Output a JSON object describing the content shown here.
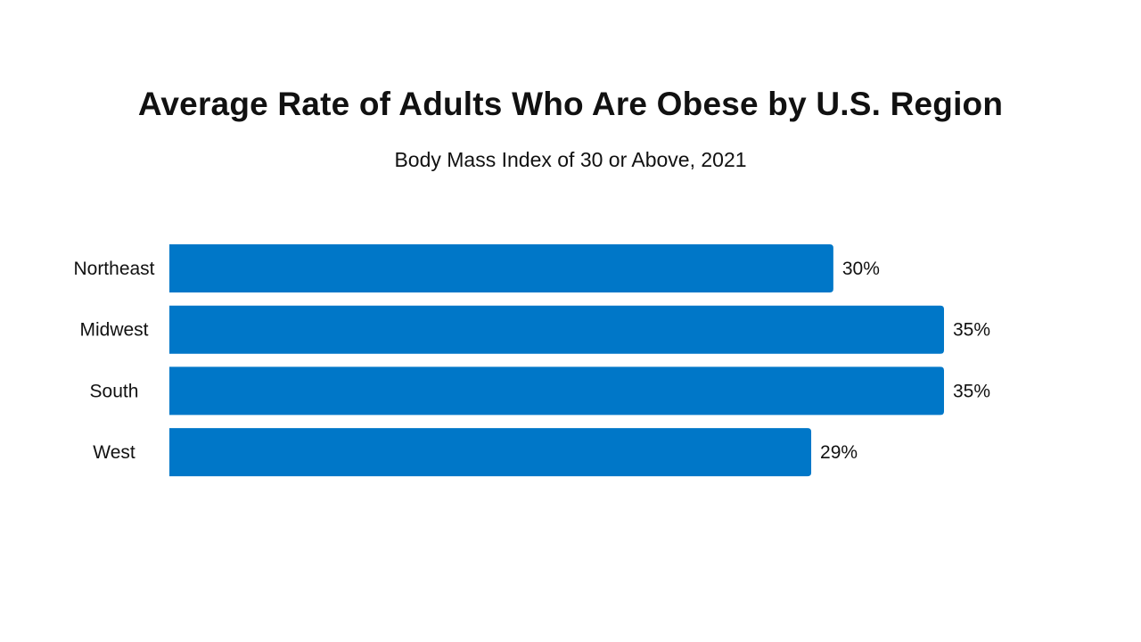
{
  "chart_data": {
    "type": "bar",
    "orientation": "horizontal",
    "title": "Average Rate of Adults Who Are Obese by U.S. Region",
    "subtitle": "Body Mass Index of 30 or Above, 2021",
    "categories": [
      "Northeast",
      "Midwest",
      "South",
      "West"
    ],
    "values": [
      30,
      35,
      35,
      29
    ],
    "value_labels": [
      "30%",
      "35%",
      "35%",
      "29%"
    ],
    "xlim": [
      0,
      35
    ],
    "grid": false,
    "legend": "none",
    "bar_color": "#0077C8"
  }
}
